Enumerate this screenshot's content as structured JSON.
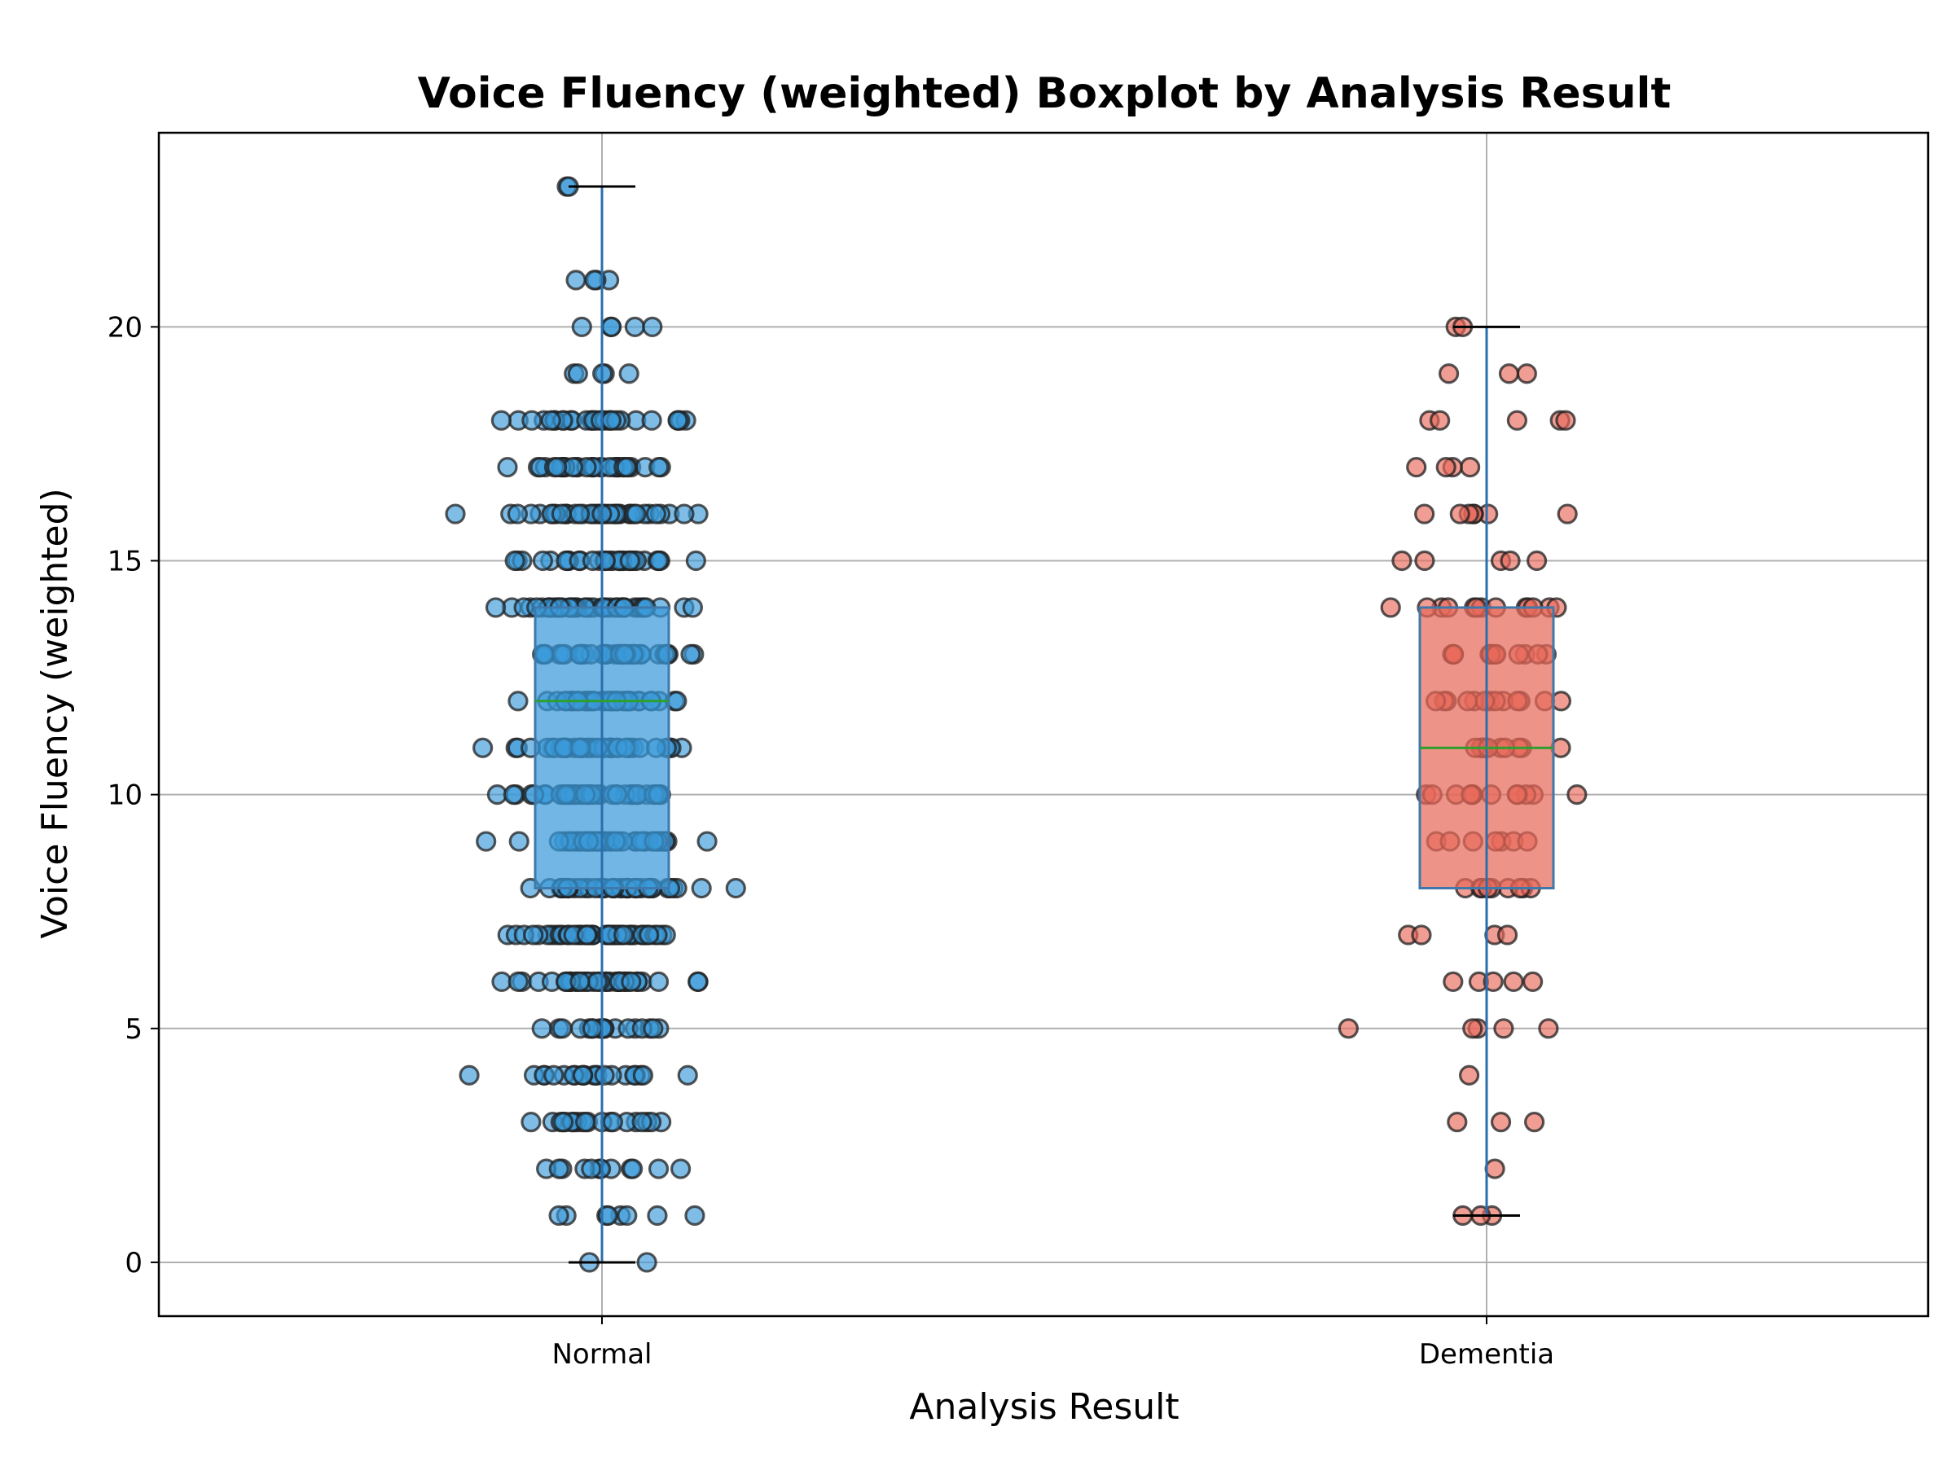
{
  "chart_data": {
    "type": "box",
    "title": "Voice Fluency (weighted) Boxplot by Analysis Result",
    "xlabel": "Analysis Result",
    "ylabel": "Voice Fluency (weighted)",
    "ylim": [
      -1.15,
      24.15
    ],
    "yticks": [
      0,
      5,
      10,
      15,
      20
    ],
    "grid": true,
    "categories": [
      "Normal",
      "Dementia"
    ],
    "series": [
      {
        "category": "Normal",
        "color": "#3a9ad9",
        "box": {
          "whisker_low": 0,
          "q1": 8,
          "median": 12,
          "q3": 14,
          "whisker_high": 23
        },
        "points": [
          {
            "y": 0,
            "n": 2
          },
          {
            "y": 1,
            "n": 8
          },
          {
            "y": 2,
            "n": 12
          },
          {
            "y": 3,
            "n": 20
          },
          {
            "y": 4,
            "n": 22
          },
          {
            "y": 5,
            "n": 18
          },
          {
            "y": 6,
            "n": 38
          },
          {
            "y": 7,
            "n": 52
          },
          {
            "y": 8,
            "n": 40
          },
          {
            "y": 9,
            "n": 45
          },
          {
            "y": 10,
            "n": 42
          },
          {
            "y": 11,
            "n": 40
          },
          {
            "y": 12,
            "n": 38
          },
          {
            "y": 13,
            "n": 38
          },
          {
            "y": 14,
            "n": 45
          },
          {
            "y": 15,
            "n": 30
          },
          {
            "y": 16,
            "n": 40
          },
          {
            "y": 17,
            "n": 32
          },
          {
            "y": 18,
            "n": 30
          },
          {
            "y": 19,
            "n": 5
          },
          {
            "y": 20,
            "n": 5
          },
          {
            "y": 21,
            "n": 4
          },
          {
            "y": 23,
            "n": 2
          }
        ]
      },
      {
        "category": "Dementia",
        "color": "#e8695a",
        "box": {
          "whisker_low": 1,
          "q1": 8,
          "median": 11,
          "q3": 14,
          "whisker_high": 20
        },
        "points": [
          {
            "y": 1,
            "n": 3
          },
          {
            "y": 2,
            "n": 1
          },
          {
            "y": 3,
            "n": 3
          },
          {
            "y": 4,
            "n": 1
          },
          {
            "y": 5,
            "n": 5
          },
          {
            "y": 6,
            "n": 5
          },
          {
            "y": 7,
            "n": 4
          },
          {
            "y": 8,
            "n": 9
          },
          {
            "y": 9,
            "n": 7
          },
          {
            "y": 10,
            "n": 12
          },
          {
            "y": 11,
            "n": 11
          },
          {
            "y": 12,
            "n": 13
          },
          {
            "y": 13,
            "n": 12
          },
          {
            "y": 14,
            "n": 13
          },
          {
            "y": 15,
            "n": 5
          },
          {
            "y": 16,
            "n": 7
          },
          {
            "y": 17,
            "n": 4
          },
          {
            "y": 18,
            "n": 5
          },
          {
            "y": 19,
            "n": 3
          },
          {
            "y": 20,
            "n": 2
          }
        ]
      }
    ]
  }
}
